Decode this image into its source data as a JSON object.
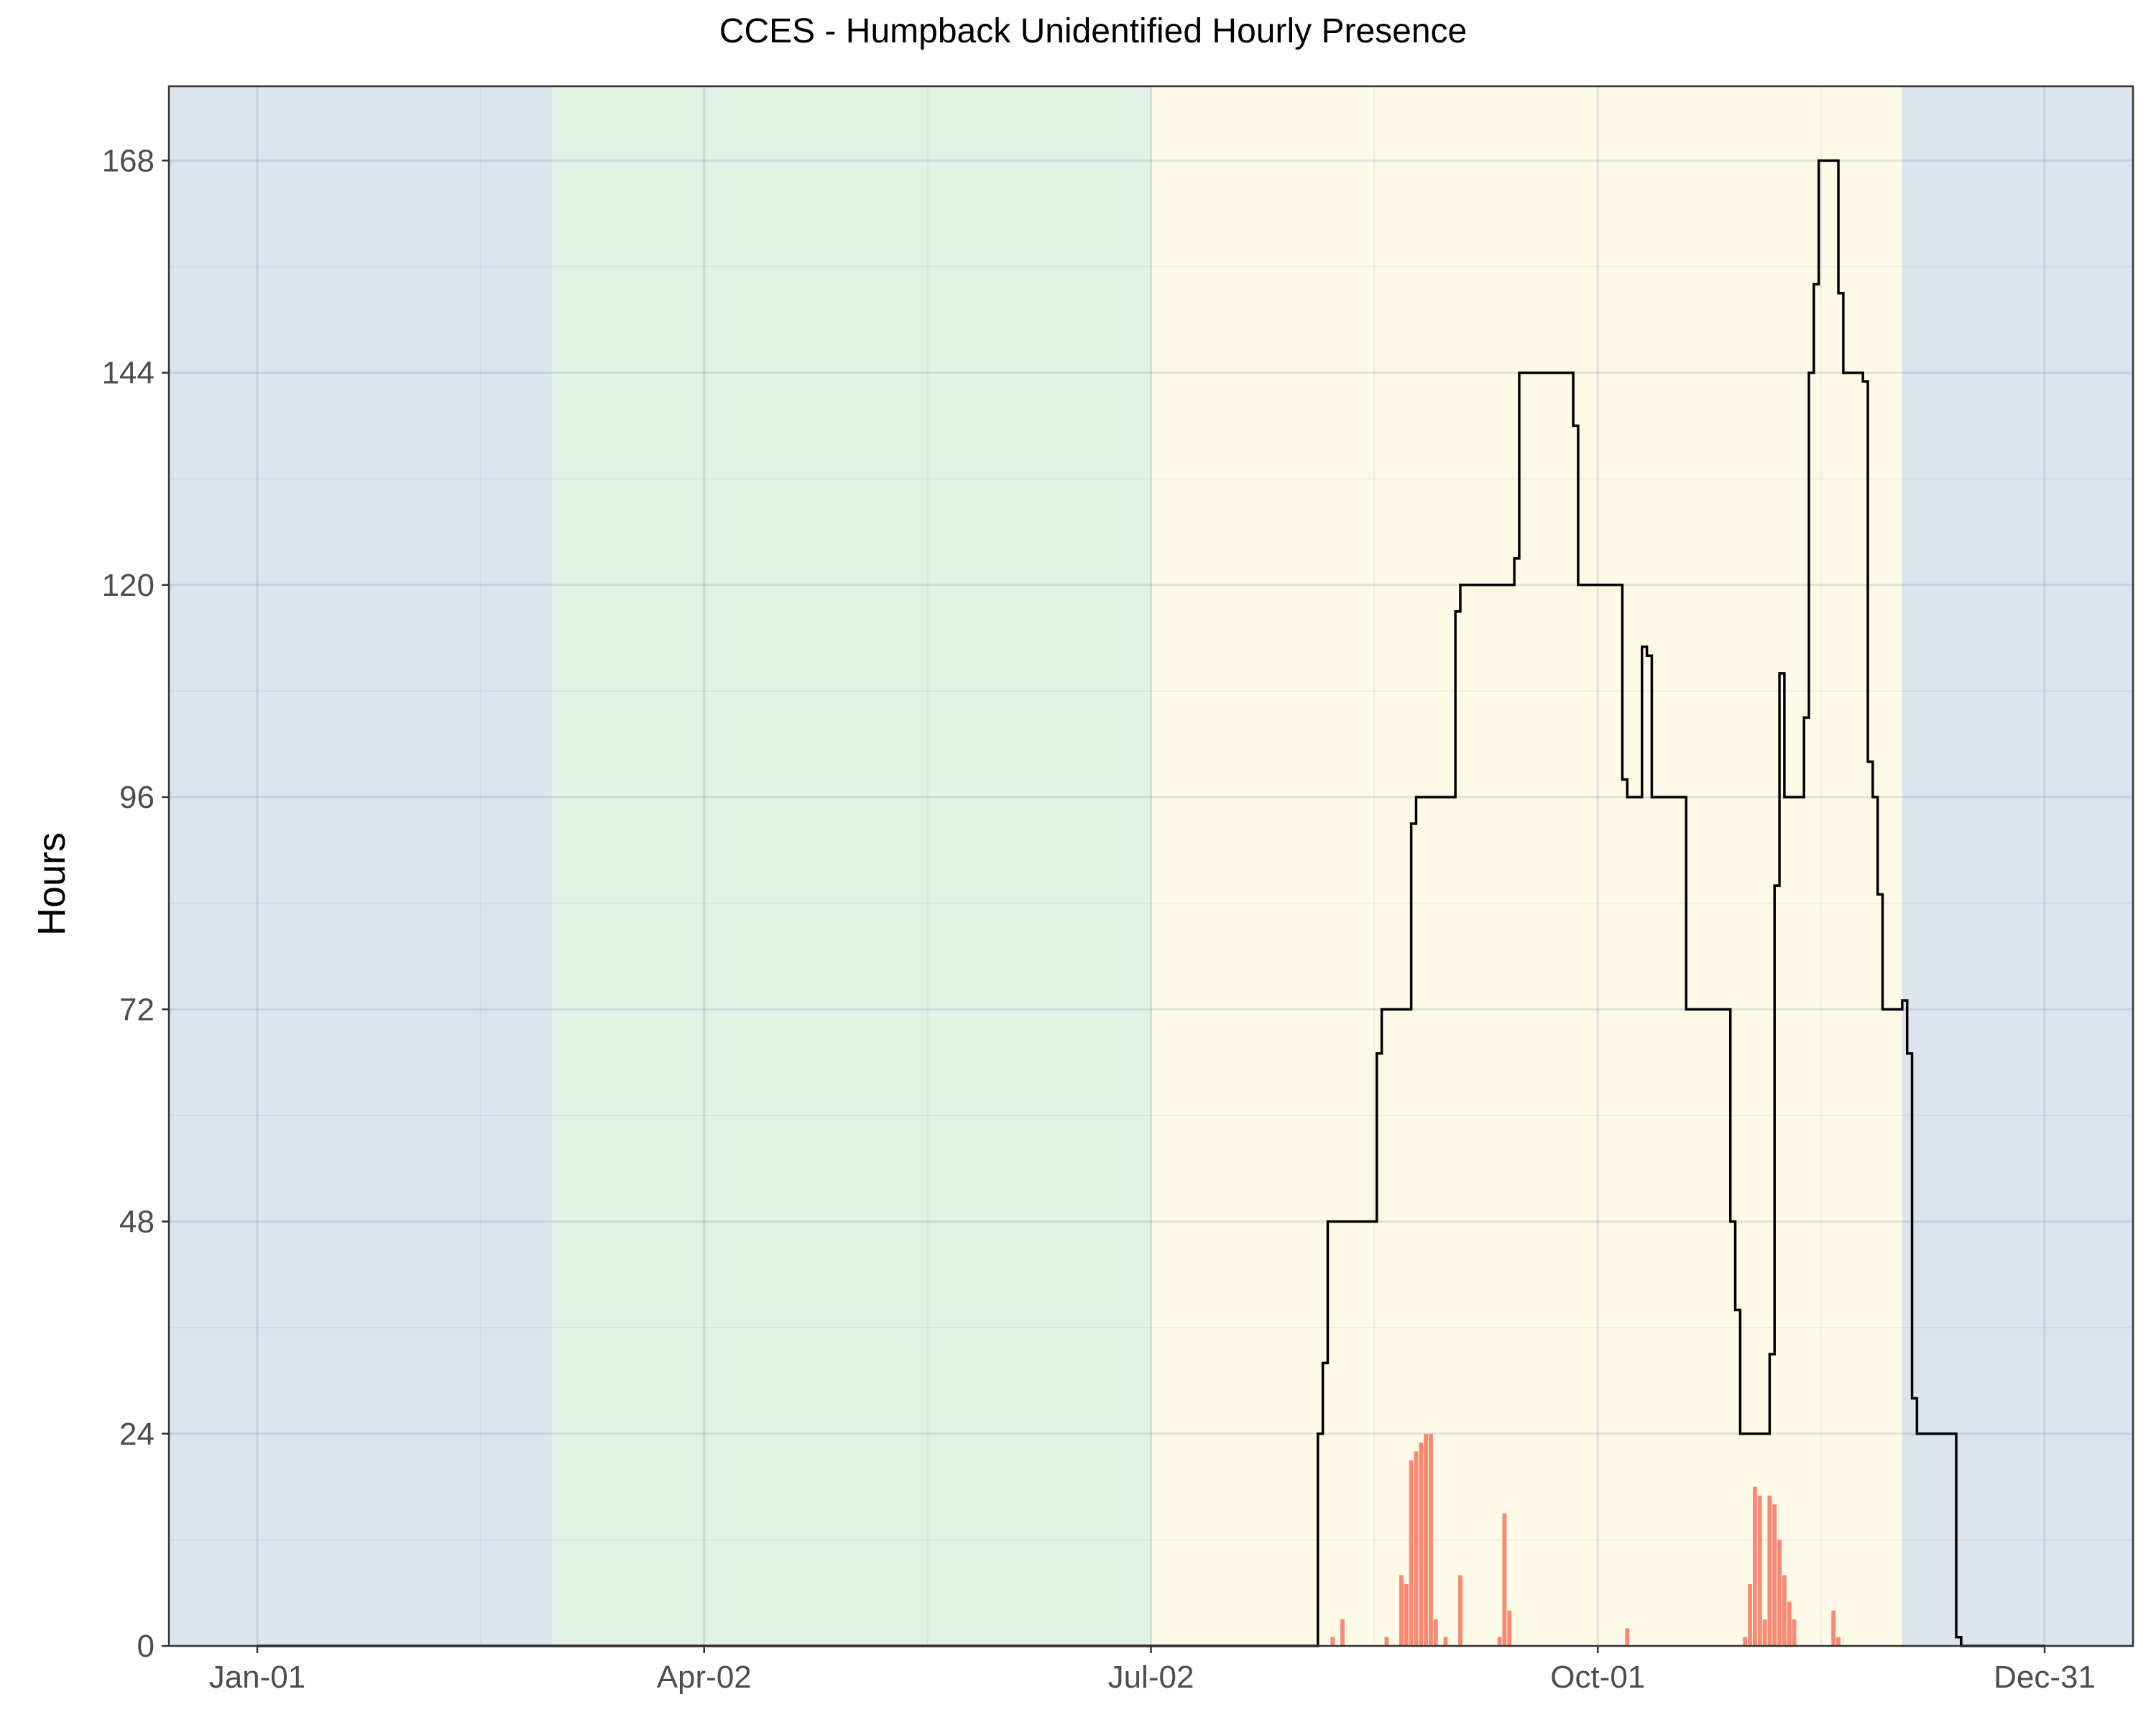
{
  "chart_data": {
    "type": "bar",
    "title": "CCES - Humpback Unidentified Hourly Presence",
    "xlabel": "",
    "ylabel": "Hours",
    "x_ticks": [
      {
        "label": "Jan-01",
        "day": 0
      },
      {
        "label": "Apr-02",
        "day": 91
      },
      {
        "label": "Jul-02",
        "day": 182
      },
      {
        "label": "Oct-01",
        "day": 273
      },
      {
        "label": "Dec-31",
        "day": 364
      }
    ],
    "y_ticks": [
      0,
      24,
      48,
      72,
      96,
      120,
      144,
      168
    ],
    "xlim": [
      -18,
      382
    ],
    "ylim": [
      0,
      176.4
    ],
    "grid": true,
    "seasons": [
      {
        "start": -18,
        "end": 60,
        "color": "#dce4ee"
      },
      {
        "start": 60,
        "end": 182,
        "color": "#e1f1e6"
      },
      {
        "start": 182,
        "end": 335,
        "color": "#fdfbe8"
      },
      {
        "start": 335,
        "end": 382,
        "color": "#dce4ee"
      }
    ],
    "bar_color": "#fa8872",
    "line_color": "#000000",
    "series": [
      {
        "type": "bar",
        "points": [
          [
            219,
            1
          ],
          [
            221,
            3
          ],
          [
            230,
            1
          ],
          [
            233,
            8
          ],
          [
            234,
            7
          ],
          [
            235,
            21
          ],
          [
            236,
            22
          ],
          [
            237,
            23
          ],
          [
            238,
            24
          ],
          [
            239,
            24
          ],
          [
            240,
            3
          ],
          [
            242,
            1
          ],
          [
            245,
            8
          ],
          [
            253,
            1
          ],
          [
            254,
            15
          ],
          [
            255,
            4
          ],
          [
            279,
            2
          ],
          [
            303,
            1
          ],
          [
            304,
            7
          ],
          [
            305,
            18
          ],
          [
            306,
            17
          ],
          [
            307,
            3
          ],
          [
            308,
            17
          ],
          [
            309,
            16
          ],
          [
            310,
            12
          ],
          [
            311,
            8
          ],
          [
            312,
            5
          ],
          [
            313,
            3
          ],
          [
            321,
            4
          ],
          [
            322,
            1
          ]
        ]
      },
      {
        "type": "step",
        "points": [
          [
            0,
            0
          ],
          [
            210,
            0
          ],
          [
            216,
            24
          ],
          [
            217,
            32
          ],
          [
            218,
            48
          ],
          [
            227,
            48
          ],
          [
            228,
            67
          ],
          [
            229,
            72
          ],
          [
            234,
            72
          ],
          [
            235,
            93
          ],
          [
            236,
            96
          ],
          [
            243,
            96
          ],
          [
            244,
            117
          ],
          [
            245,
            120
          ],
          [
            255,
            120
          ],
          [
            256,
            123
          ],
          [
            257,
            144
          ],
          [
            267,
            144
          ],
          [
            268,
            138
          ],
          [
            269,
            120
          ],
          [
            277,
            120
          ],
          [
            278,
            98
          ],
          [
            279,
            96
          ],
          [
            281,
            96
          ],
          [
            282,
            113
          ],
          [
            283,
            112
          ],
          [
            284,
            96
          ],
          [
            290,
            96
          ],
          [
            291,
            72
          ],
          [
            299,
            72
          ],
          [
            300,
            48
          ],
          [
            301,
            38
          ],
          [
            302,
            24
          ],
          [
            307,
            24
          ],
          [
            308,
            33
          ],
          [
            309,
            86
          ],
          [
            310,
            110
          ],
          [
            311,
            96
          ],
          [
            314,
            96
          ],
          [
            315,
            105
          ],
          [
            316,
            144
          ],
          [
            317,
            154
          ],
          [
            318,
            168
          ],
          [
            321,
            168
          ],
          [
            322,
            153
          ],
          [
            323,
            144
          ],
          [
            326,
            144
          ],
          [
            327,
            143
          ],
          [
            328,
            100
          ],
          [
            329,
            96
          ],
          [
            330,
            85
          ],
          [
            331,
            72
          ],
          [
            334,
            72
          ],
          [
            335,
            73
          ],
          [
            336,
            67
          ],
          [
            337,
            28
          ],
          [
            338,
            24
          ],
          [
            345,
            24
          ],
          [
            346,
            1
          ],
          [
            347,
            0
          ],
          [
            364,
            0
          ]
        ]
      }
    ]
  }
}
